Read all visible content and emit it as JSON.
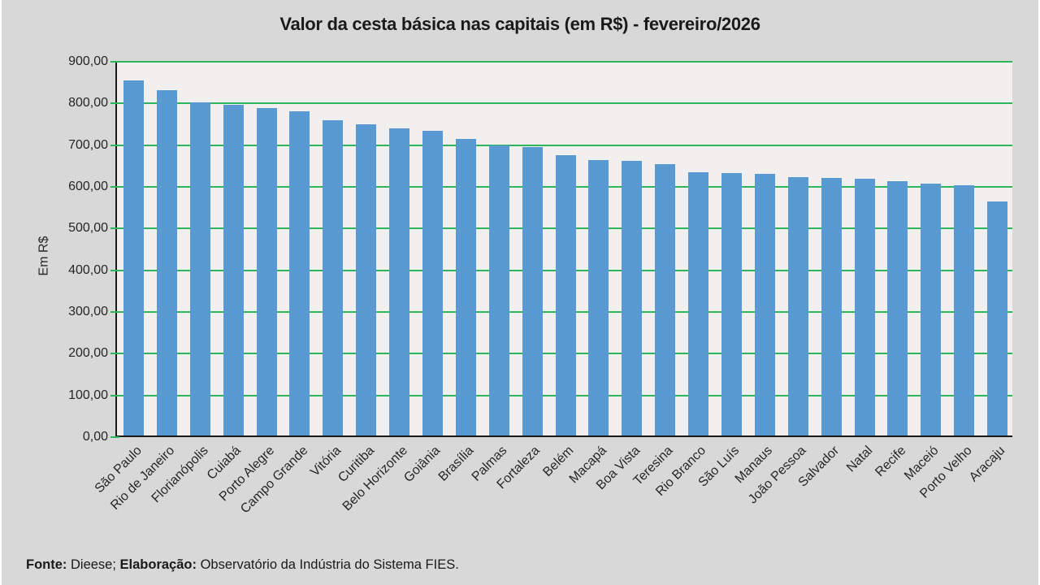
{
  "title": "Valor da cesta básica nas capitais (em R$) - fevereiro/2026",
  "footer": {
    "segments": [
      {
        "text": "Fonte:",
        "bold": true
      },
      {
        "text": " Dieese; ",
        "bold": false
      },
      {
        "text": "Elaboração:",
        "bold": true
      },
      {
        "text": " Observatório da Indústria do Sistema FIES.",
        "bold": false
      }
    ]
  },
  "chart_data": {
    "type": "bar",
    "title": "Valor da cesta básica nas capitais (em R$) - fevereiro/2026",
    "xlabel": "",
    "ylabel": "Em R$",
    "ylim": [
      0,
      900
    ],
    "ytick_step": 100,
    "ytick_labels": [
      "0,00",
      "100,00",
      "200,00",
      "300,00",
      "400,00",
      "500,00",
      "600,00",
      "700,00",
      "800,00",
      "900,00"
    ],
    "grid": "horizontal-green",
    "legend_position": "none",
    "categories": [
      "São Paulo",
      "Rio de Janeiro",
      "Florianópolis",
      "Cuiabá",
      "Porto Alegre",
      "Campo Grande",
      "Vitória",
      "Curitiba",
      "Belo Horizonte",
      "Goiânia",
      "Brasília",
      "Palmas",
      "Fortaleza",
      "Belém",
      "Macapá",
      "Boa Vista",
      "Teresina",
      "Rio Branco",
      "São Luís",
      "Manaus",
      "João Pessoa",
      "Salvador",
      "Natal",
      "Recife",
      "Maceió",
      "Porto Velho",
      "Aracaju"
    ],
    "values": [
      852,
      827,
      798,
      793,
      786,
      778,
      755,
      746,
      736,
      731,
      712,
      695,
      692,
      673,
      661,
      658,
      650,
      632,
      630,
      628,
      620,
      617,
      616,
      610,
      603,
      600,
      562
    ],
    "colors": {
      "bar": "#5a9ad3",
      "gridline": "#2eb45c",
      "plot_background": "#f1f0ef",
      "canvas_background": "#d8d8d8",
      "axis": "#1a1a1a",
      "text": "#262626"
    }
  }
}
